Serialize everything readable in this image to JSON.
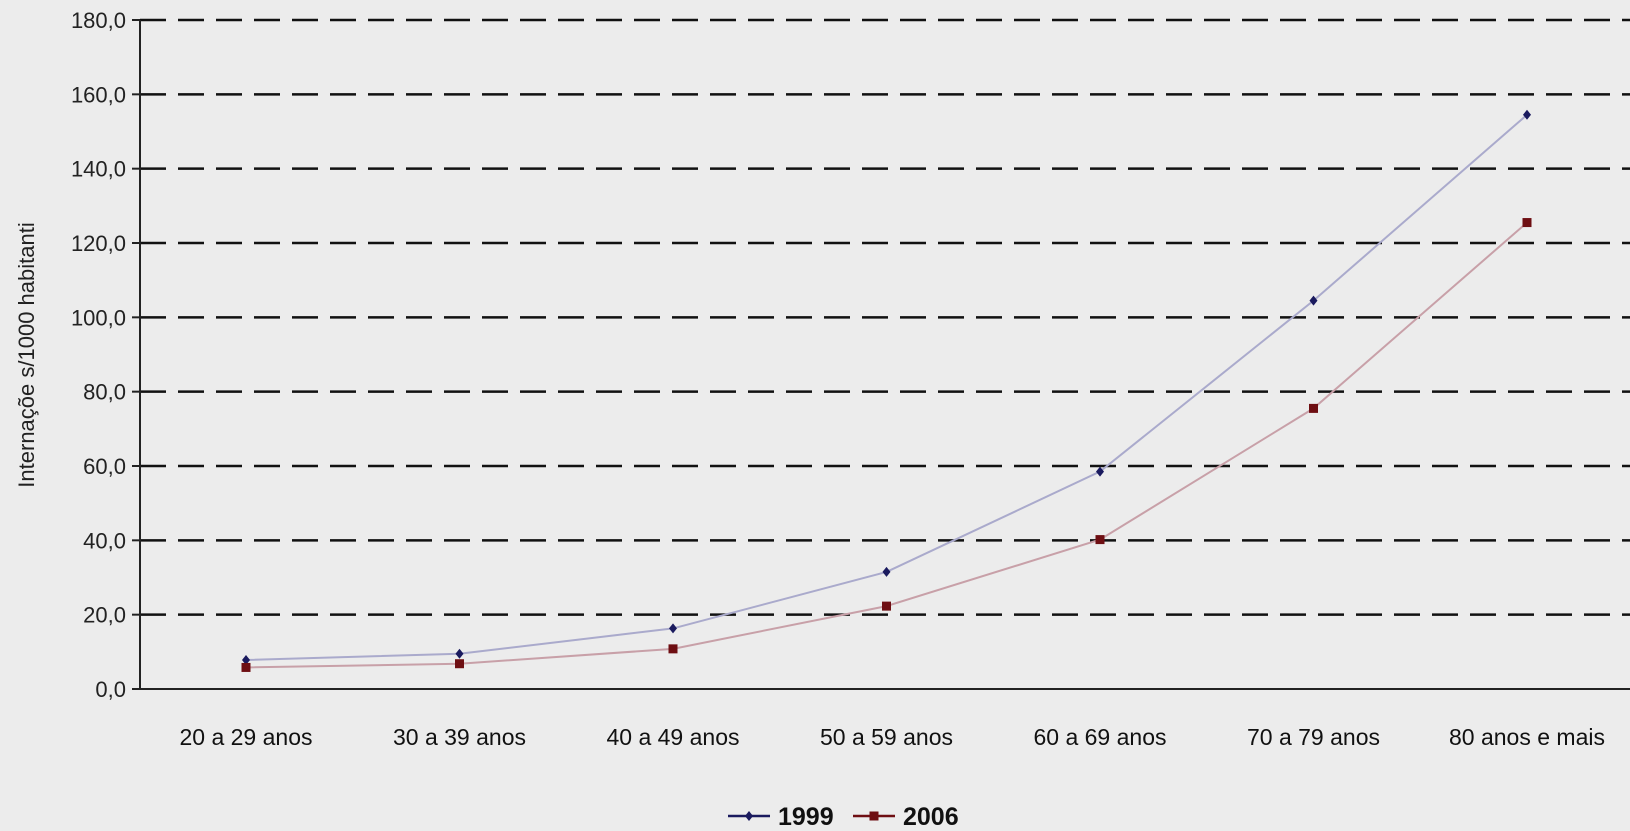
{
  "chart_data": {
    "type": "line",
    "title": "",
    "xlabel": "",
    "ylabel": "Internaçõe s/1000 habitanti",
    "categories": [
      "20 a 29 anos",
      "30 a 39 anos",
      "40 a 49 anos",
      "50 a 59 anos",
      "60 a 69 anos",
      "70 a 79 anos",
      "80 anos e mais"
    ],
    "y_ticks": [
      "0,0",
      "20,0",
      "40,0",
      "60,0",
      "80,0",
      "100,0",
      "120,0",
      "140,0",
      "160,0",
      "180,0"
    ],
    "ylim": [
      0,
      180
    ],
    "grid": true,
    "legend_position": "bottom-center",
    "series": [
      {
        "name": "1999",
        "color": "#aaaacc",
        "marker_color": "#1a1a5e",
        "marker": "diamond",
        "values": [
          7.8,
          9.5,
          16.3,
          31.5,
          58.5,
          104.5,
          154.5
        ]
      },
      {
        "name": "2006",
        "color": "#c8a0a8",
        "marker_color": "#6e0e12",
        "marker": "square",
        "values": [
          5.8,
          6.8,
          10.8,
          22.3,
          40.2,
          75.5,
          125.5
        ]
      }
    ]
  }
}
